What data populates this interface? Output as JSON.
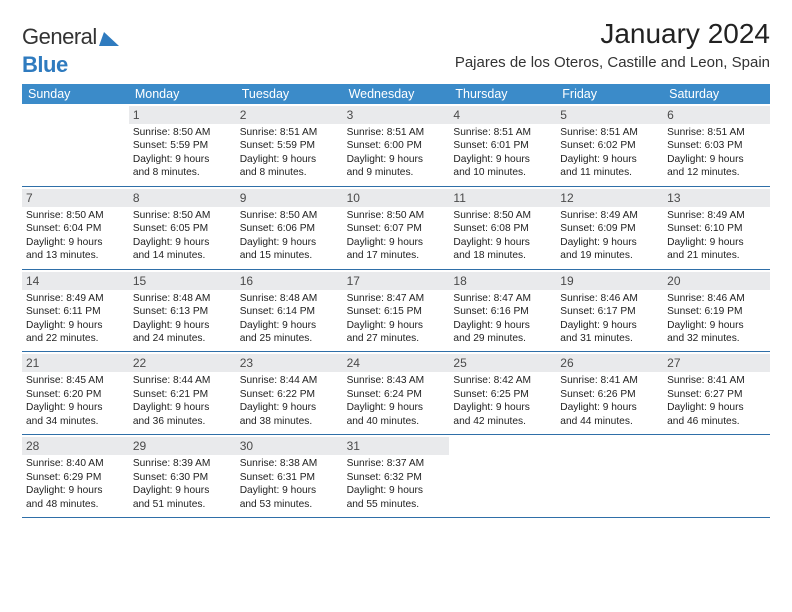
{
  "logo": {
    "text_a": "General",
    "text_b": "Blue",
    "tri_color": "#2f7bbf"
  },
  "title": "January 2024",
  "location": "Pajares de los Oteros, Castille and Leon, Spain",
  "colors": {
    "header_bg": "#3b8bc9",
    "week_border": "#2f6fa8",
    "daynum_bg": "#e9eaec"
  },
  "day_names": [
    "Sunday",
    "Monday",
    "Tuesday",
    "Wednesday",
    "Thursday",
    "Friday",
    "Saturday"
  ],
  "weeks": [
    [
      {
        "n": "",
        "sr": "",
        "ss": "",
        "d1": "",
        "d2": ""
      },
      {
        "n": "1",
        "sr": "Sunrise: 8:50 AM",
        "ss": "Sunset: 5:59 PM",
        "d1": "Daylight: 9 hours",
        "d2": "and 8 minutes."
      },
      {
        "n": "2",
        "sr": "Sunrise: 8:51 AM",
        "ss": "Sunset: 5:59 PM",
        "d1": "Daylight: 9 hours",
        "d2": "and 8 minutes."
      },
      {
        "n": "3",
        "sr": "Sunrise: 8:51 AM",
        "ss": "Sunset: 6:00 PM",
        "d1": "Daylight: 9 hours",
        "d2": "and 9 minutes."
      },
      {
        "n": "4",
        "sr": "Sunrise: 8:51 AM",
        "ss": "Sunset: 6:01 PM",
        "d1": "Daylight: 9 hours",
        "d2": "and 10 minutes."
      },
      {
        "n": "5",
        "sr": "Sunrise: 8:51 AM",
        "ss": "Sunset: 6:02 PM",
        "d1": "Daylight: 9 hours",
        "d2": "and 11 minutes."
      },
      {
        "n": "6",
        "sr": "Sunrise: 8:51 AM",
        "ss": "Sunset: 6:03 PM",
        "d1": "Daylight: 9 hours",
        "d2": "and 12 minutes."
      }
    ],
    [
      {
        "n": "7",
        "sr": "Sunrise: 8:50 AM",
        "ss": "Sunset: 6:04 PM",
        "d1": "Daylight: 9 hours",
        "d2": "and 13 minutes."
      },
      {
        "n": "8",
        "sr": "Sunrise: 8:50 AM",
        "ss": "Sunset: 6:05 PM",
        "d1": "Daylight: 9 hours",
        "d2": "and 14 minutes."
      },
      {
        "n": "9",
        "sr": "Sunrise: 8:50 AM",
        "ss": "Sunset: 6:06 PM",
        "d1": "Daylight: 9 hours",
        "d2": "and 15 minutes."
      },
      {
        "n": "10",
        "sr": "Sunrise: 8:50 AM",
        "ss": "Sunset: 6:07 PM",
        "d1": "Daylight: 9 hours",
        "d2": "and 17 minutes."
      },
      {
        "n": "11",
        "sr": "Sunrise: 8:50 AM",
        "ss": "Sunset: 6:08 PM",
        "d1": "Daylight: 9 hours",
        "d2": "and 18 minutes."
      },
      {
        "n": "12",
        "sr": "Sunrise: 8:49 AM",
        "ss": "Sunset: 6:09 PM",
        "d1": "Daylight: 9 hours",
        "d2": "and 19 minutes."
      },
      {
        "n": "13",
        "sr": "Sunrise: 8:49 AM",
        "ss": "Sunset: 6:10 PM",
        "d1": "Daylight: 9 hours",
        "d2": "and 21 minutes."
      }
    ],
    [
      {
        "n": "14",
        "sr": "Sunrise: 8:49 AM",
        "ss": "Sunset: 6:11 PM",
        "d1": "Daylight: 9 hours",
        "d2": "and 22 minutes."
      },
      {
        "n": "15",
        "sr": "Sunrise: 8:48 AM",
        "ss": "Sunset: 6:13 PM",
        "d1": "Daylight: 9 hours",
        "d2": "and 24 minutes."
      },
      {
        "n": "16",
        "sr": "Sunrise: 8:48 AM",
        "ss": "Sunset: 6:14 PM",
        "d1": "Daylight: 9 hours",
        "d2": "and 25 minutes."
      },
      {
        "n": "17",
        "sr": "Sunrise: 8:47 AM",
        "ss": "Sunset: 6:15 PM",
        "d1": "Daylight: 9 hours",
        "d2": "and 27 minutes."
      },
      {
        "n": "18",
        "sr": "Sunrise: 8:47 AM",
        "ss": "Sunset: 6:16 PM",
        "d1": "Daylight: 9 hours",
        "d2": "and 29 minutes."
      },
      {
        "n": "19",
        "sr": "Sunrise: 8:46 AM",
        "ss": "Sunset: 6:17 PM",
        "d1": "Daylight: 9 hours",
        "d2": "and 31 minutes."
      },
      {
        "n": "20",
        "sr": "Sunrise: 8:46 AM",
        "ss": "Sunset: 6:19 PM",
        "d1": "Daylight: 9 hours",
        "d2": "and 32 minutes."
      }
    ],
    [
      {
        "n": "21",
        "sr": "Sunrise: 8:45 AM",
        "ss": "Sunset: 6:20 PM",
        "d1": "Daylight: 9 hours",
        "d2": "and 34 minutes."
      },
      {
        "n": "22",
        "sr": "Sunrise: 8:44 AM",
        "ss": "Sunset: 6:21 PM",
        "d1": "Daylight: 9 hours",
        "d2": "and 36 minutes."
      },
      {
        "n": "23",
        "sr": "Sunrise: 8:44 AM",
        "ss": "Sunset: 6:22 PM",
        "d1": "Daylight: 9 hours",
        "d2": "and 38 minutes."
      },
      {
        "n": "24",
        "sr": "Sunrise: 8:43 AM",
        "ss": "Sunset: 6:24 PM",
        "d1": "Daylight: 9 hours",
        "d2": "and 40 minutes."
      },
      {
        "n": "25",
        "sr": "Sunrise: 8:42 AM",
        "ss": "Sunset: 6:25 PM",
        "d1": "Daylight: 9 hours",
        "d2": "and 42 minutes."
      },
      {
        "n": "26",
        "sr": "Sunrise: 8:41 AM",
        "ss": "Sunset: 6:26 PM",
        "d1": "Daylight: 9 hours",
        "d2": "and 44 minutes."
      },
      {
        "n": "27",
        "sr": "Sunrise: 8:41 AM",
        "ss": "Sunset: 6:27 PM",
        "d1": "Daylight: 9 hours",
        "d2": "and 46 minutes."
      }
    ],
    [
      {
        "n": "28",
        "sr": "Sunrise: 8:40 AM",
        "ss": "Sunset: 6:29 PM",
        "d1": "Daylight: 9 hours",
        "d2": "and 48 minutes."
      },
      {
        "n": "29",
        "sr": "Sunrise: 8:39 AM",
        "ss": "Sunset: 6:30 PM",
        "d1": "Daylight: 9 hours",
        "d2": "and 51 minutes."
      },
      {
        "n": "30",
        "sr": "Sunrise: 8:38 AM",
        "ss": "Sunset: 6:31 PM",
        "d1": "Daylight: 9 hours",
        "d2": "and 53 minutes."
      },
      {
        "n": "31",
        "sr": "Sunrise: 8:37 AM",
        "ss": "Sunset: 6:32 PM",
        "d1": "Daylight: 9 hours",
        "d2": "and 55 minutes."
      },
      {
        "n": "",
        "sr": "",
        "ss": "",
        "d1": "",
        "d2": ""
      },
      {
        "n": "",
        "sr": "",
        "ss": "",
        "d1": "",
        "d2": ""
      },
      {
        "n": "",
        "sr": "",
        "ss": "",
        "d1": "",
        "d2": ""
      }
    ]
  ]
}
